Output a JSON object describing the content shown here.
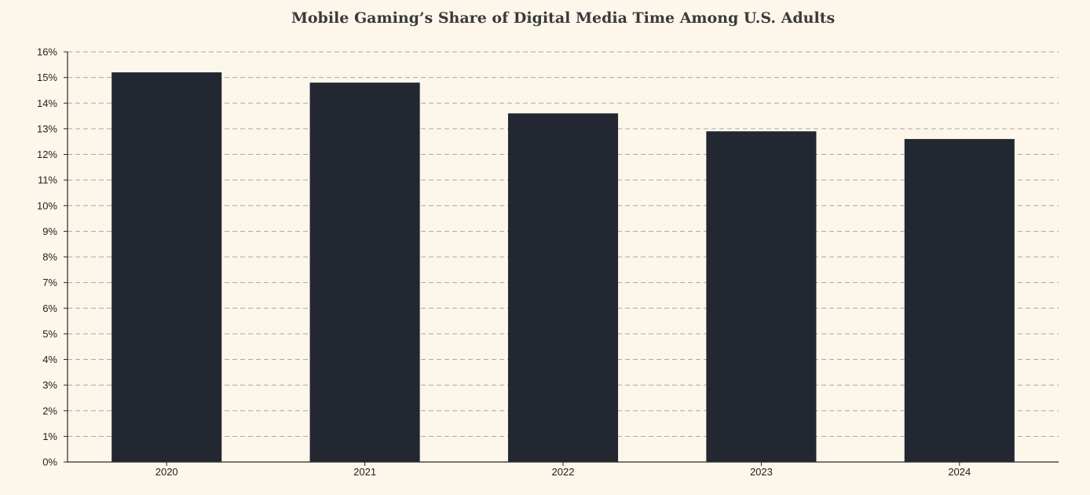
{
  "chart_data": {
    "type": "bar",
    "title": "Mobile Gaming’s Share of Digital Media Time Among U.S. Adults",
    "xlabel": "",
    "ylabel": "",
    "categories": [
      "2020",
      "2021",
      "2022",
      "2023",
      "2024"
    ],
    "values": [
      15.2,
      14.8,
      13.6,
      12.9,
      12.6
    ],
    "value_unit": "%",
    "ylim": [
      0,
      16
    ],
    "y_tick_step": 1,
    "y_tick_labels": [
      "0%",
      "1%",
      "2%",
      "3%",
      "4%",
      "5%",
      "6%",
      "7%",
      "8%",
      "9%",
      "10%",
      "11%",
      "12%",
      "13%",
      "14%",
      "15%",
      "16%"
    ],
    "grid": true,
    "grid_style": "dashed horizontal",
    "legend": "none",
    "colors": {
      "background": "#fdf6ea",
      "bar": "#222731",
      "grid": "#a9a9a9",
      "axis": "#2b2b2b",
      "title": "#3a3a3a",
      "tick_text": "#1f1f1f"
    }
  }
}
